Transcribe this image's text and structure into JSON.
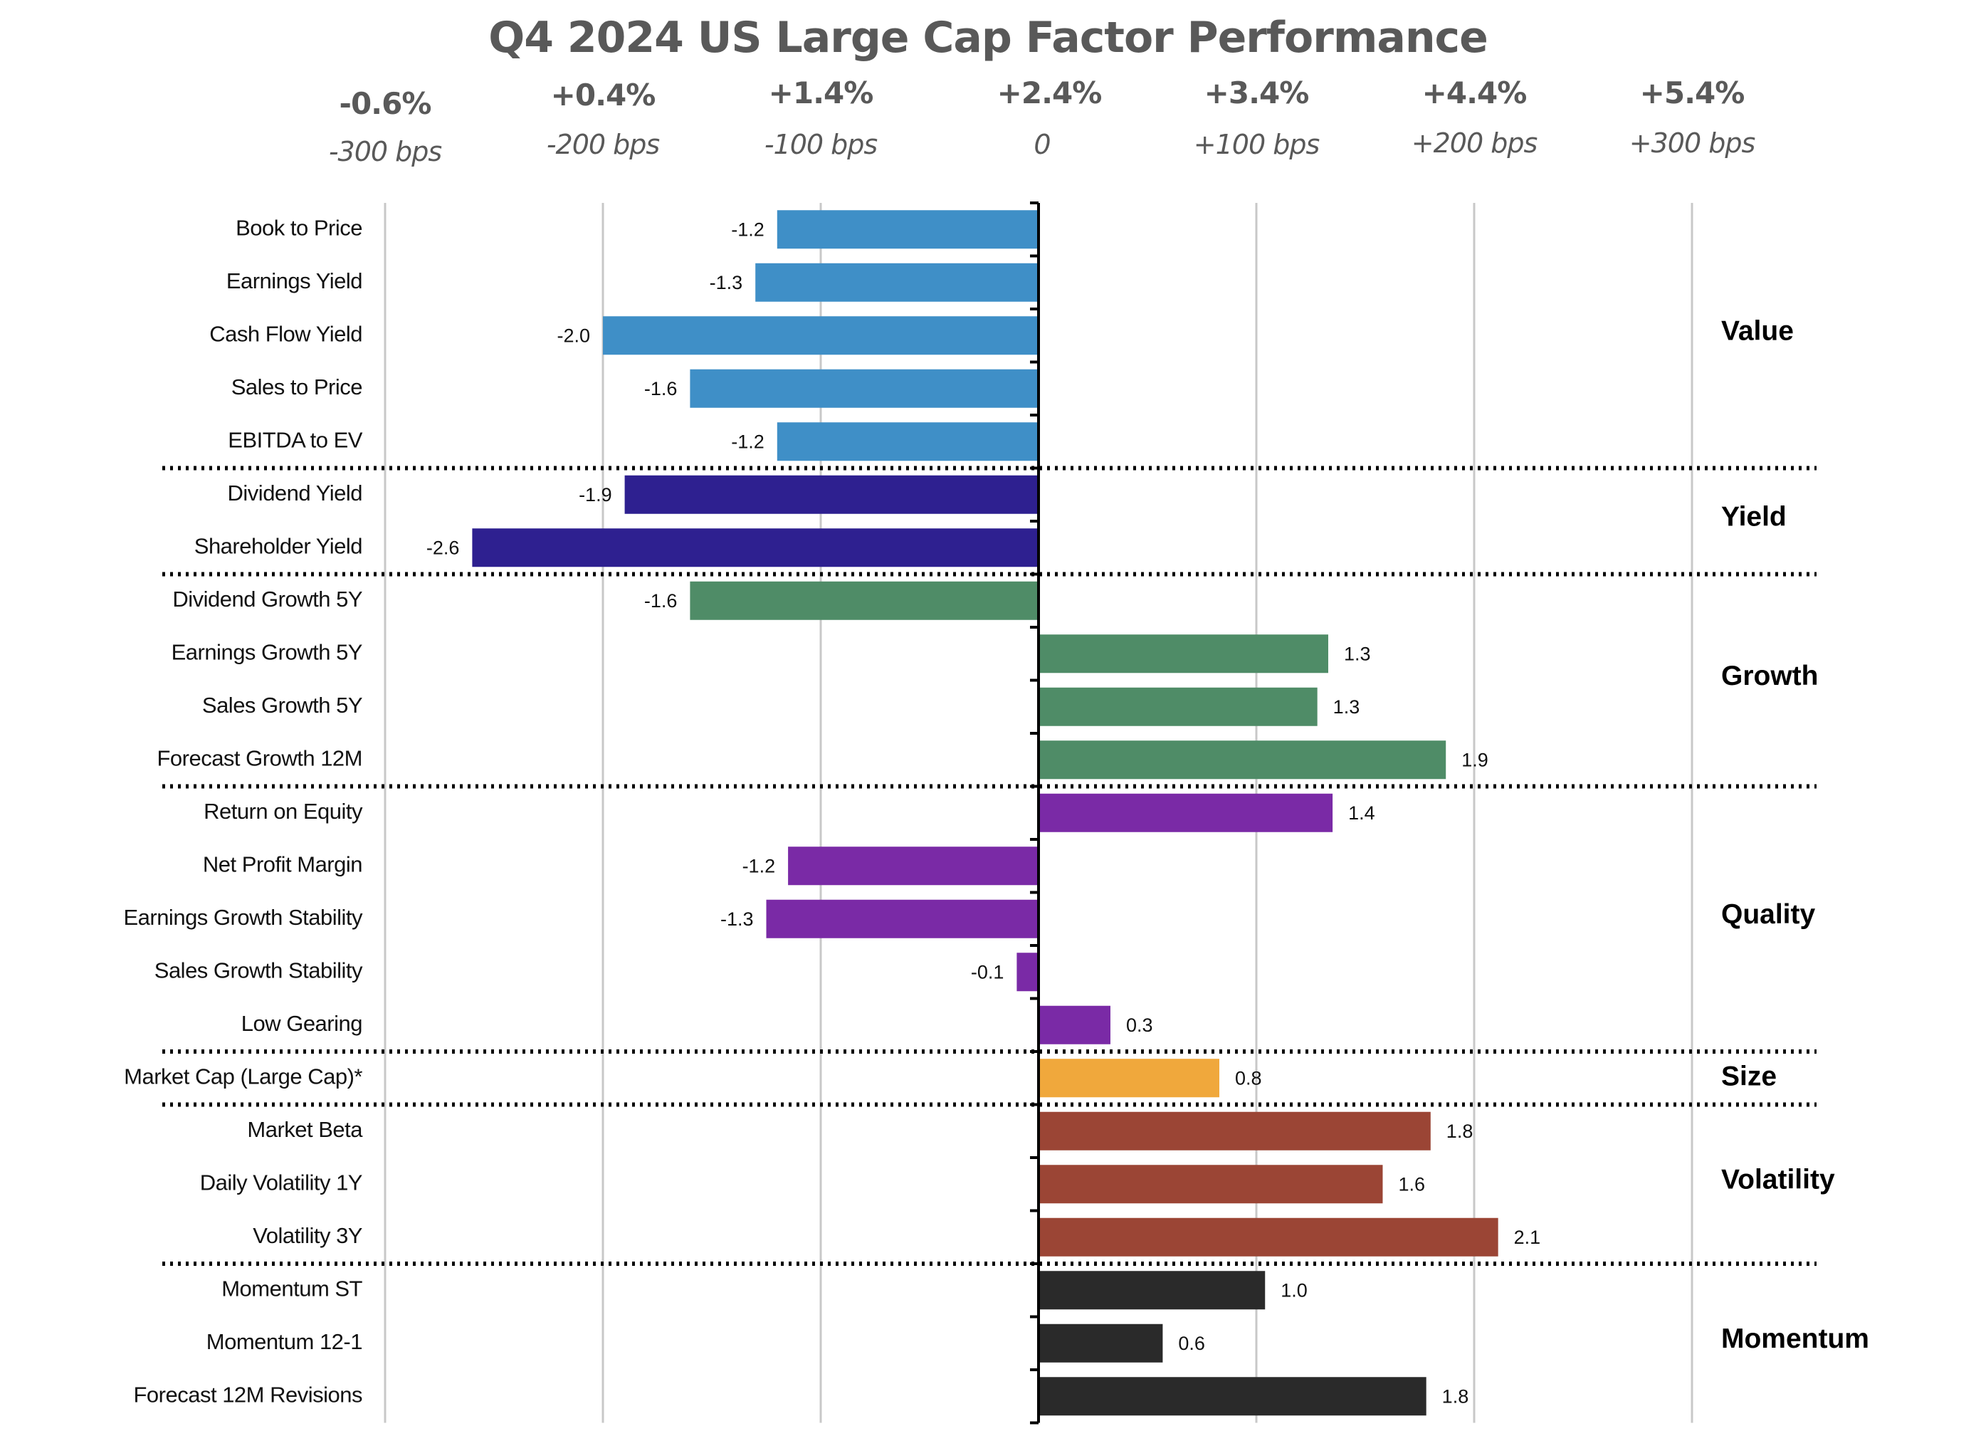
{
  "chart_data": {
    "type": "bar",
    "orientation": "horizontal",
    "title": "Q4 2024 US Large Cap Factor Performance",
    "xlabel": "",
    "ylabel": "",
    "xlim": [
      -3,
      3
    ],
    "grid": true,
    "top_axis_ticks": [
      {
        "value": -3,
        "pct": "-0.6%",
        "bps": "-300 bps"
      },
      {
        "value": -2,
        "pct": "+0.4%",
        "bps": "-200 bps"
      },
      {
        "value": -1,
        "pct": "+1.4%",
        "bps": "-100 bps"
      },
      {
        "value": 0,
        "pct": "+2.4%",
        "bps": "0"
      },
      {
        "value": 1,
        "pct": "+3.4%",
        "bps": "+100 bps"
      },
      {
        "value": 2,
        "pct": "+4.4%",
        "bps": "+200 bps"
      },
      {
        "value": 3,
        "pct": "+5.4%",
        "bps": "+300 bps"
      }
    ],
    "groups": [
      {
        "name": "Value",
        "color": "#3f8fc7",
        "items": [
          {
            "label": "Book to Price",
            "value": -1.2,
            "display": "-1.2"
          },
          {
            "label": "Earnings Yield",
            "value": -1.3,
            "display": "-1.3"
          },
          {
            "label": "Cash Flow Yield",
            "value": -2.0,
            "display": "-2.0"
          },
          {
            "label": "Sales to Price",
            "value": -1.6,
            "display": "-1.6"
          },
          {
            "label": "EBITDA to EV",
            "value": -1.2,
            "display": "-1.2"
          }
        ]
      },
      {
        "name": "Yield",
        "color": "#2e2090",
        "items": [
          {
            "label": "Dividend Yield",
            "value": -1.9,
            "display": "-1.9"
          },
          {
            "label": "Shareholder Yield",
            "value": -2.6,
            "display": "-2.6"
          }
        ]
      },
      {
        "name": "Growth",
        "color": "#4f8c67",
        "items": [
          {
            "label": "Dividend Growth 5Y",
            "value": -1.6,
            "display": "-1.6"
          },
          {
            "label": "Earnings Growth 5Y",
            "value": 1.33,
            "display": "1.3"
          },
          {
            "label": "Sales Growth 5Y",
            "value": 1.28,
            "display": "1.3"
          },
          {
            "label": "Forecast Growth 12M",
            "value": 1.87,
            "display": "1.9"
          }
        ]
      },
      {
        "name": "Quality",
        "color": "#7a2aa6",
        "items": [
          {
            "label": "Return on Equity",
            "value": 1.35,
            "display": "1.4"
          },
          {
            "label": "Net Profit Margin",
            "value": -1.15,
            "display": "-1.2"
          },
          {
            "label": "Earnings Growth Stability",
            "value": -1.25,
            "display": "-1.3"
          },
          {
            "label": "Sales Growth Stability",
            "value": -0.1,
            "display": "-0.1"
          },
          {
            "label": "Low Gearing",
            "value": 0.33,
            "display": "0.3"
          }
        ]
      },
      {
        "name": "Size",
        "color": "#f0a83c",
        "items": [
          {
            "label": "Market Cap (Large Cap)*",
            "value": 0.83,
            "display": "0.8"
          }
        ]
      },
      {
        "name": "Volatility",
        "color": "#9b4535",
        "items": [
          {
            "label": "Market Beta",
            "value": 1.8,
            "display": "1.8"
          },
          {
            "label": "Daily Volatility 1Y",
            "value": 1.58,
            "display": "1.6"
          },
          {
            "label": "Volatility 3Y",
            "value": 2.11,
            "display": "2.1"
          }
        ]
      },
      {
        "name": "Momentum",
        "color": "#2a2a2a",
        "items": [
          {
            "label": "Momentum ST",
            "value": 1.04,
            "display": "1.0"
          },
          {
            "label": "Momentum 12-1",
            "value": 0.57,
            "display": "0.6"
          },
          {
            "label": "Forecast 12M Revisions",
            "value": 1.78,
            "display": "1.8"
          }
        ]
      }
    ]
  }
}
